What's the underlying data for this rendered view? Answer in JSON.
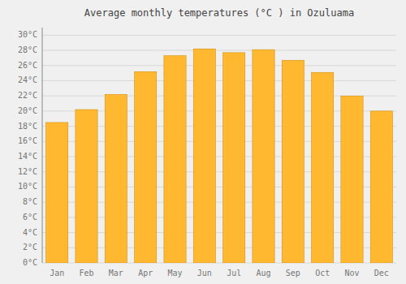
{
  "chart_data": {
    "type": "bar",
    "title": "Average monthly temperatures (°C ) in Ozuluama",
    "categories": [
      "Jan",
      "Feb",
      "Mar",
      "Apr",
      "May",
      "Jun",
      "Jul",
      "Aug",
      "Sep",
      "Oct",
      "Nov",
      "Dec"
    ],
    "values": [
      18.5,
      20.2,
      22.2,
      25.2,
      27.3,
      28.2,
      27.7,
      28.1,
      26.7,
      25.1,
      22.0,
      20.0
    ],
    "color": "#FFB830",
    "ylim": [
      0,
      31
    ],
    "yticks": [
      {
        "value": 0,
        "label": "0°C"
      },
      {
        "value": 2,
        "label": "2°C"
      },
      {
        "value": 4,
        "label": "4°C"
      },
      {
        "value": 6,
        "label": "6°C"
      },
      {
        "value": 8,
        "label": "8°C"
      },
      {
        "value": 10,
        "label": "10°C"
      },
      {
        "value": 12,
        "label": "12°C"
      },
      {
        "value": 14,
        "label": "14°C"
      },
      {
        "value": 16,
        "label": "16°C"
      },
      {
        "value": 18,
        "label": "18°C"
      },
      {
        "value": 20,
        "label": "20°C"
      },
      {
        "value": 22,
        "label": "22°C"
      },
      {
        "value": 24,
        "label": "24°C"
      },
      {
        "value": 26,
        "label": "26°C"
      },
      {
        "value": 28,
        "label": "28°C"
      },
      {
        "value": 30,
        "label": "30°C"
      }
    ],
    "grid": true
  }
}
